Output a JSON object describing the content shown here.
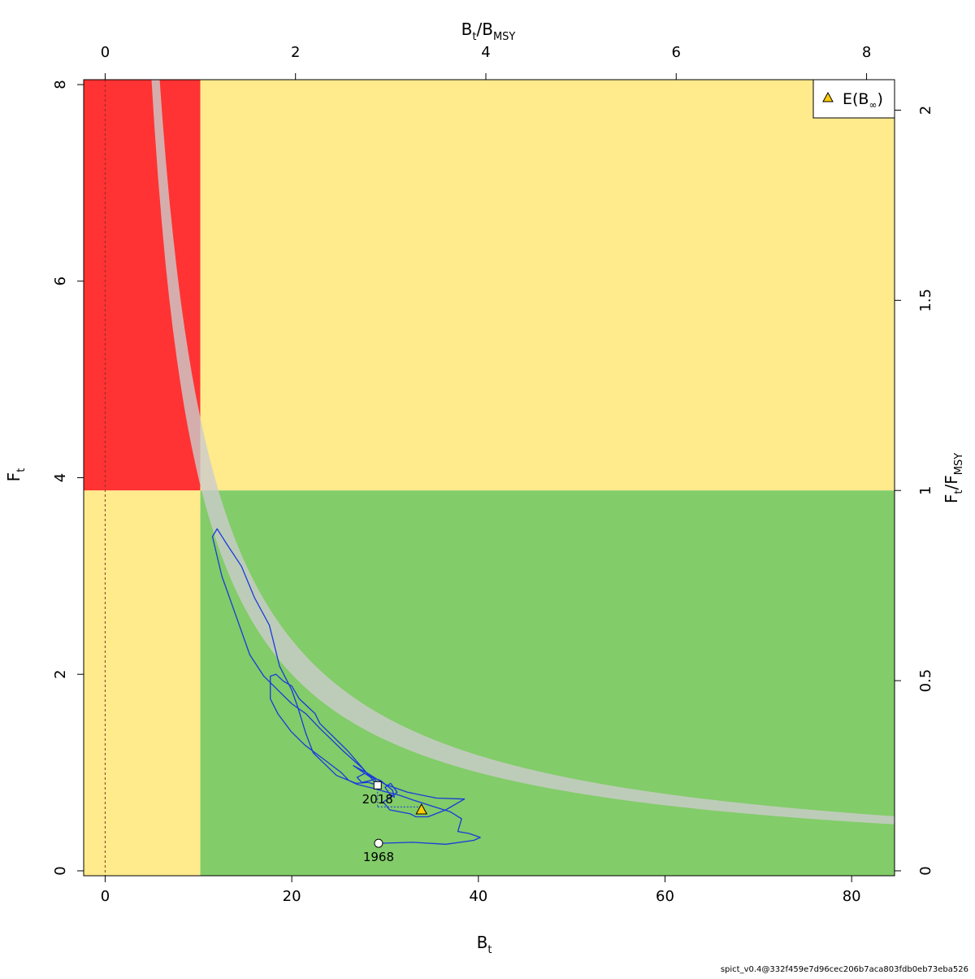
{
  "chart_data": {
    "type": "line",
    "x_axis": {
      "label": "B",
      "label_sub": "t",
      "range": [
        -2.3,
        84.6
      ],
      "ticks": [
        0,
        20,
        40,
        60,
        80
      ],
      "tick_labels": [
        "0",
        "20",
        "40",
        "60",
        "80"
      ]
    },
    "y_axis": {
      "label": "F",
      "label_sub": "t",
      "range": [
        -0.05,
        8.05
      ],
      "ticks": [
        0,
        2,
        4,
        6,
        8
      ],
      "tick_labels": [
        "0",
        "2",
        "4",
        "6",
        "8"
      ]
    },
    "top_axis": {
      "label_main": "B",
      "label_sub1": "t",
      "label_slash": "/B",
      "label_sub2": "MSY",
      "ticks": [
        0,
        2,
        4,
        6,
        8
      ],
      "tick_labels": [
        "0",
        "2",
        "4",
        "6",
        "8"
      ]
    },
    "right_axis": {
      "label_main": "F",
      "label_sub1": "t",
      "label_slash": "/F",
      "label_sub2": "MSY",
      "ticks": [
        0,
        0.5,
        1,
        1.5,
        2
      ],
      "tick_labels": [
        "0",
        "0.5",
        "1",
        "1.5",
        "2"
      ]
    },
    "reference_points": {
      "Bmsy": 10.2,
      "Fmsy": 3.87
    },
    "zones": {
      "red": "#ff3333",
      "yellow": "#ffea8c",
      "green": "#82cc69"
    },
    "msy_band": {
      "color": "#cccccc",
      "opacity": 0.8,
      "lower_k": 40,
      "upper_k": 47
    },
    "trajectory_color": "#1a3adb",
    "trajectory": [
      [
        29.3,
        0.28
      ],
      [
        33.0,
        0.29
      ],
      [
        36.5,
        0.27
      ],
      [
        39.5,
        0.31
      ],
      [
        40.2,
        0.34
      ],
      [
        39.0,
        0.38
      ],
      [
        37.8,
        0.4
      ],
      [
        38.2,
        0.53
      ],
      [
        37.0,
        0.6
      ],
      [
        35.0,
        0.66
      ],
      [
        33.0,
        0.72
      ],
      [
        31.5,
        0.77
      ],
      [
        30.2,
        0.8
      ],
      [
        28.7,
        0.84
      ],
      [
        27.0,
        0.88
      ],
      [
        26.1,
        0.92
      ],
      [
        25.3,
        1.0
      ],
      [
        23.5,
        1.13
      ],
      [
        21.4,
        1.28
      ],
      [
        19.9,
        1.42
      ],
      [
        18.5,
        1.6
      ],
      [
        17.7,
        1.75
      ],
      [
        17.7,
        1.98
      ],
      [
        18.3,
        2.0
      ],
      [
        19.1,
        1.93
      ],
      [
        20.0,
        1.88
      ],
      [
        20.8,
        1.75
      ],
      [
        22.5,
        1.6
      ],
      [
        23.0,
        1.5
      ],
      [
        26.0,
        1.22
      ],
      [
        28.0,
        1.0
      ],
      [
        30.0,
        0.88
      ],
      [
        32.4,
        0.8
      ],
      [
        35.5,
        0.74
      ],
      [
        38.5,
        0.73
      ],
      [
        36.5,
        0.62
      ],
      [
        34.6,
        0.55
      ],
      [
        33.3,
        0.55
      ],
      [
        32.7,
        0.58
      ],
      [
        30.5,
        0.62
      ],
      [
        29.8,
        0.7
      ],
      [
        31.0,
        0.78
      ],
      [
        31.3,
        0.8
      ],
      [
        30.6,
        0.89
      ],
      [
        30.0,
        0.85
      ],
      [
        30.5,
        0.78
      ],
      [
        31.0,
        0.75
      ],
      [
        30.8,
        0.82
      ],
      [
        29.5,
        0.92
      ],
      [
        28.3,
        0.96
      ],
      [
        27.7,
        1.0
      ],
      [
        26.6,
        1.07
      ],
      [
        27.6,
        1.02
      ],
      [
        28.5,
        0.97
      ],
      [
        28.9,
        0.94
      ],
      [
        28.5,
        0.92
      ],
      [
        27.5,
        0.9
      ],
      [
        27.0,
        0.95
      ],
      [
        27.8,
        0.99
      ],
      [
        28.6,
        0.96
      ],
      [
        29.0,
        0.92
      ],
      [
        29.2,
        0.87
      ],
      [
        28.2,
        0.9
      ],
      [
        26.9,
        0.89
      ],
      [
        24.8,
        0.97
      ],
      [
        22.3,
        1.2
      ],
      [
        21.5,
        1.4
      ],
      [
        20.7,
        1.65
      ],
      [
        20.0,
        1.84
      ],
      [
        18.7,
        2.08
      ],
      [
        17.6,
        2.5
      ],
      [
        16.0,
        2.78
      ],
      [
        14.6,
        3.1
      ],
      [
        13.0,
        3.33
      ],
      [
        12.0,
        3.48
      ],
      [
        11.5,
        3.4
      ],
      [
        12.5,
        3.0
      ],
      [
        14.0,
        2.6
      ],
      [
        15.5,
        2.2
      ],
      [
        17.0,
        1.98
      ],
      [
        18.5,
        1.84
      ],
      [
        20.0,
        1.7
      ],
      [
        21.5,
        1.6
      ],
      [
        23.0,
        1.45
      ],
      [
        25.5,
        1.22
      ],
      [
        27.5,
        1.05
      ],
      [
        29.2,
        0.87
      ]
    ],
    "start": {
      "year": "1968",
      "x": 29.3,
      "y": 0.28
    },
    "end": {
      "year": "2018",
      "x": 29.2,
      "y": 0.87
    },
    "forecast_line": {
      "x": [
        29.2,
        33.8
      ],
      "y": [
        0.65,
        0.65
      ]
    },
    "equilibrium": {
      "x": 33.9,
      "y": 0.62,
      "color": "#ffcc00"
    },
    "legend": {
      "placement": "top-right",
      "label_main": "E(B",
      "label_sub": "∞",
      "label_close": ")"
    },
    "vertical_ref_line_x": 0
  },
  "footer": "spict_v0.4@332f459e7d96cec206b7aca803fdb0eb73eba526"
}
